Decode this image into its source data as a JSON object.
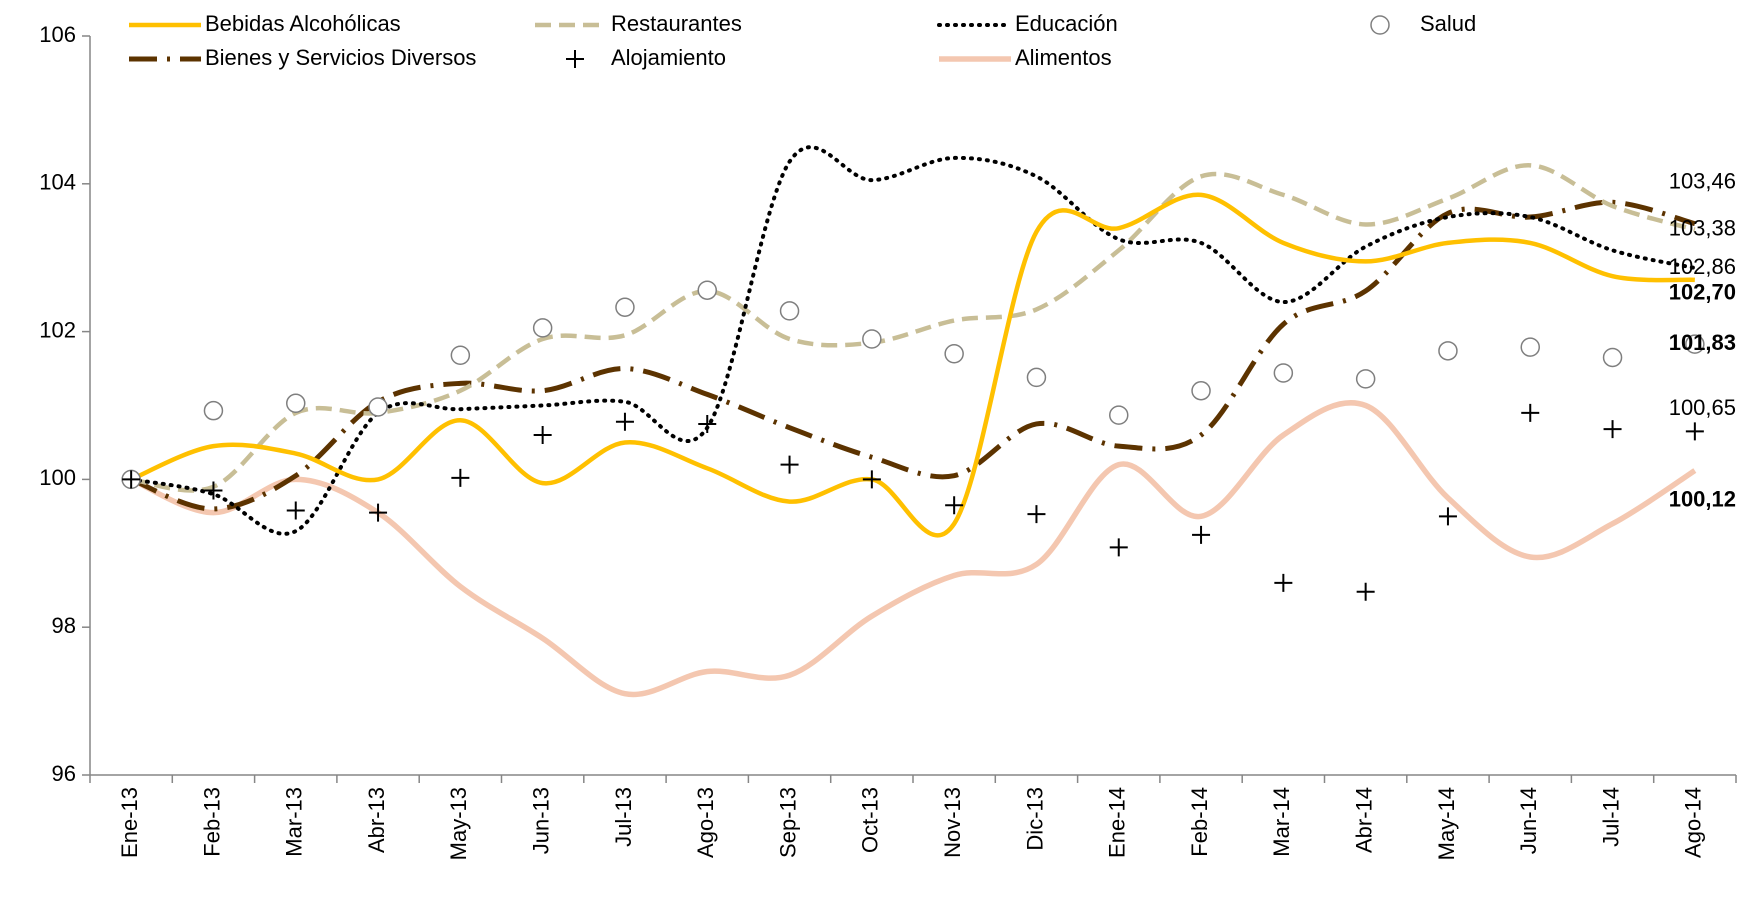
{
  "chart_data": {
    "type": "line",
    "categories": [
      "Ene-13",
      "Feb-13",
      "Mar-13",
      "Abr-13",
      "May-13",
      "Jun-13",
      "Jul-13",
      "Ago-13",
      "Sep-13",
      "Oct-13",
      "Nov-13",
      "Dic-13",
      "Ene-14",
      "Feb-14",
      "Mar-14",
      "Abr-14",
      "May-14",
      "Jun-14",
      "Jul-14",
      "Ago-14"
    ],
    "ylim": [
      96,
      106
    ],
    "yticks": [
      96,
      98,
      100,
      102,
      104,
      106
    ],
    "series": [
      {
        "name": "Bebidas Alcohólicas",
        "color": "#FFC000",
        "style": "solid",
        "values": [
          100,
          100.45,
          100.35,
          100.0,
          100.8,
          99.95,
          100.5,
          100.15,
          99.7,
          100.0,
          99.4,
          103.35,
          103.4,
          103.85,
          103.2,
          102.95,
          103.2,
          103.2,
          102.75,
          102.7
        ],
        "value_labels": [
          null,
          null,
          null,
          null,
          null,
          null,
          null,
          null,
          null,
          null,
          null,
          null,
          null,
          null,
          null,
          null,
          null,
          null,
          null,
          "102,70"
        ]
      },
      {
        "name": "Restaurantes",
        "color": "#C8BE96",
        "style": "dashed",
        "values": [
          100,
          99.9,
          100.9,
          100.9,
          101.2,
          101.9,
          101.95,
          102.55,
          101.9,
          101.85,
          102.15,
          102.3,
          103.1,
          104.1,
          103.85,
          103.45,
          103.8,
          104.25,
          103.7,
          103.38
        ],
        "value_labels": [
          null,
          null,
          null,
          null,
          null,
          null,
          null,
          null,
          null,
          null,
          null,
          null,
          null,
          null,
          null,
          null,
          null,
          null,
          null,
          "103,38"
        ]
      },
      {
        "name": "Educación",
        "color": "#000000",
        "style": "dotted",
        "values": [
          100,
          99.8,
          99.3,
          100.9,
          100.95,
          101.0,
          101.05,
          100.7,
          104.3,
          104.05,
          104.35,
          104.1,
          103.25,
          103.2,
          102.4,
          103.15,
          103.55,
          103.55,
          103.1,
          102.86
        ],
        "value_labels": [
          null,
          null,
          null,
          null,
          null,
          null,
          null,
          null,
          null,
          null,
          null,
          null,
          null,
          null,
          null,
          null,
          null,
          null,
          null,
          "102,86"
        ]
      },
      {
        "name": "Salud",
        "color": "#7F7F7F",
        "style": "circle",
        "label_color": "#A6A6A6",
        "values": [
          100,
          100.93,
          101.03,
          100.98,
          101.68,
          102.05,
          102.33,
          102.56,
          102.28,
          101.9,
          101.7,
          101.38,
          100.87,
          101.2,
          101.44,
          101.36,
          101.74,
          101.79,
          101.65,
          101.83
        ],
        "value_labels": [
          null,
          null,
          null,
          null,
          null,
          null,
          null,
          null,
          null,
          null,
          null,
          null,
          null,
          null,
          null,
          null,
          null,
          null,
          null,
          "101,83"
        ]
      },
      {
        "name": "Bienes y Servicios Diversos",
        "color": "#5C3300",
        "style": "dashdot",
        "values": [
          100,
          99.6,
          100.05,
          101.05,
          101.3,
          101.2,
          101.5,
          101.15,
          100.7,
          100.3,
          100.05,
          100.75,
          100.45,
          100.6,
          102.1,
          102.55,
          103.6,
          103.55,
          103.75,
          103.46
        ],
        "value_labels": [
          null,
          null,
          null,
          null,
          null,
          null,
          null,
          null,
          null,
          null,
          null,
          null,
          null,
          null,
          null,
          null,
          null,
          null,
          null,
          "103,46"
        ]
      },
      {
        "name": "Alojamiento",
        "color": "#000000",
        "style": "plus",
        "values": [
          100,
          99.85,
          99.58,
          99.55,
          100.02,
          100.6,
          100.78,
          100.75,
          100.2,
          100.0,
          99.65,
          99.53,
          99.08,
          99.25,
          98.6,
          98.48,
          99.5,
          100.9,
          100.68,
          100.65
        ],
        "value_labels": [
          null,
          null,
          null,
          null,
          null,
          null,
          null,
          null,
          null,
          null,
          null,
          null,
          null,
          null,
          null,
          null,
          null,
          null,
          null,
          "100,65"
        ]
      },
      {
        "name": "Alimentos",
        "color": "#F4C7B0",
        "style": "thick",
        "values": [
          100,
          99.55,
          100.0,
          99.55,
          98.55,
          97.85,
          97.1,
          97.4,
          97.35,
          98.15,
          98.7,
          98.85,
          100.2,
          99.5,
          100.6,
          101.0,
          99.75,
          98.95,
          99.4,
          100.12
        ],
        "value_labels": [
          null,
          null,
          null,
          null,
          null,
          null,
          null,
          null,
          null,
          null,
          null,
          null,
          null,
          null,
          null,
          null,
          null,
          null,
          null,
          "100,12"
        ]
      }
    ]
  }
}
